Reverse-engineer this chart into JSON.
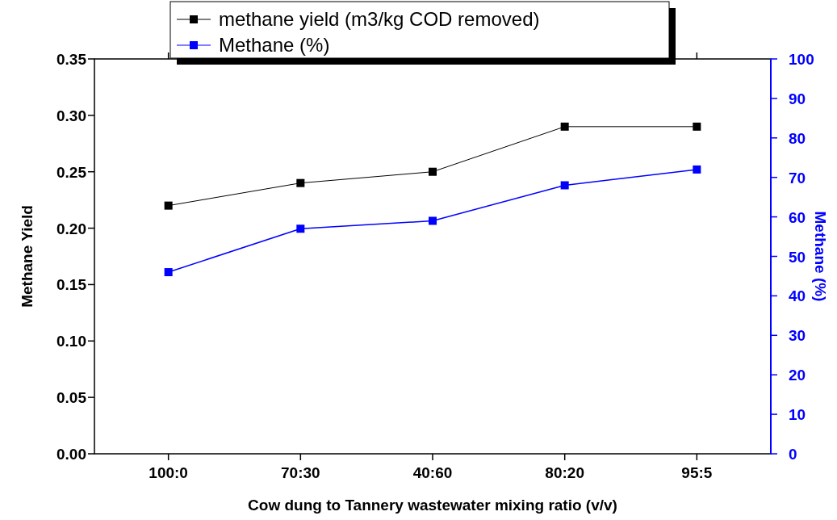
{
  "chart_data": {
    "type": "line",
    "xlabel": "Cow dung to Tannery wastewater mixing ratio (v/v)",
    "ylabel": "Methane Yield",
    "y2label": "Methane (%)",
    "categories": [
      "100:0",
      "70:30",
      "40:60",
      "80:20",
      "95:5"
    ],
    "series": [
      {
        "name": "methane yield (m3/kg COD removed)",
        "color": "#000000",
        "values": [
          0.22,
          0.24,
          0.25,
          0.29,
          0.29
        ]
      },
      {
        "name": "Methane (%)",
        "color": "#0000ff",
        "axis": "y2",
        "values": [
          46,
          57,
          59,
          68,
          72
        ]
      }
    ],
    "ylim": [
      0,
      0.35
    ],
    "yticks": [
      {
        "value": 0,
        "label": "0.00"
      },
      {
        "value": 0.05,
        "label": "0.05"
      },
      {
        "value": 0.1,
        "label": "0.10"
      },
      {
        "value": 0.15,
        "label": "0.15"
      },
      {
        "value": 0.2,
        "label": "0.20"
      },
      {
        "value": 0.25,
        "label": "0.25"
      },
      {
        "value": 0.3,
        "label": "0.30"
      },
      {
        "value": 0.35,
        "label": "0.35"
      }
    ],
    "y2lim": [
      0,
      100
    ],
    "y2ticks": [
      0,
      10,
      20,
      30,
      40,
      50,
      60,
      70,
      80,
      90,
      100
    ],
    "legend": "top",
    "marker": "square",
    "line_style": "solid",
    "grid": false
  }
}
